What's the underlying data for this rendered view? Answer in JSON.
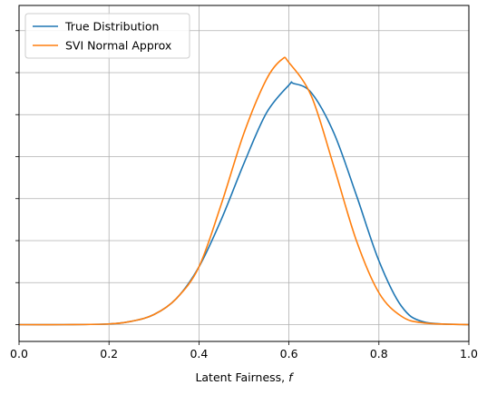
{
  "chart_data": {
    "type": "line",
    "xlabel": "Latent Fairness, ",
    "xlabel_var": "f",
    "xlim": [
      0.0,
      1.0
    ],
    "ylim": [
      -0.05,
      0.95
    ],
    "x_ticks": [
      0.0,
      0.2,
      0.4,
      0.6,
      0.8,
      1.0
    ],
    "x_tick_labels": [
      "0.0",
      "0.2",
      "0.4",
      "0.6",
      "0.8",
      "1.0"
    ],
    "y_ticks": [
      0.0,
      0.125,
      0.25,
      0.375,
      0.5,
      0.625,
      0.75,
      0.875
    ],
    "y_tick_labels_visible": false,
    "grid": true,
    "legend_position": "upper-left",
    "series": [
      {
        "name": "True Distribution",
        "color": "#1f77b4",
        "x": [
          0.0,
          0.1,
          0.2,
          0.25,
          0.3,
          0.35,
          0.4,
          0.45,
          0.5,
          0.55,
          0.6,
          0.61,
          0.65,
          0.7,
          0.75,
          0.8,
          0.85,
          0.9,
          1.0
        ],
        "y": [
          0.0,
          0.0,
          0.002,
          0.01,
          0.03,
          0.078,
          0.172,
          0.314,
          0.48,
          0.63,
          0.713,
          0.718,
          0.69,
          0.57,
          0.385,
          0.19,
          0.055,
          0.008,
          0.0
        ]
      },
      {
        "name": "SVI Normal Approx",
        "color": "#ff7f0e",
        "x": [
          0.0,
          0.1,
          0.2,
          0.25,
          0.3,
          0.35,
          0.4,
          0.45,
          0.5,
          0.55,
          0.585,
          0.6,
          0.65,
          0.7,
          0.75,
          0.8,
          0.85,
          0.9,
          1.0
        ],
        "y": [
          0.0,
          0.0,
          0.002,
          0.01,
          0.03,
          0.078,
          0.172,
          0.36,
          0.57,
          0.73,
          0.79,
          0.78,
          0.68,
          0.47,
          0.25,
          0.095,
          0.025,
          0.005,
          0.0
        ]
      }
    ]
  }
}
